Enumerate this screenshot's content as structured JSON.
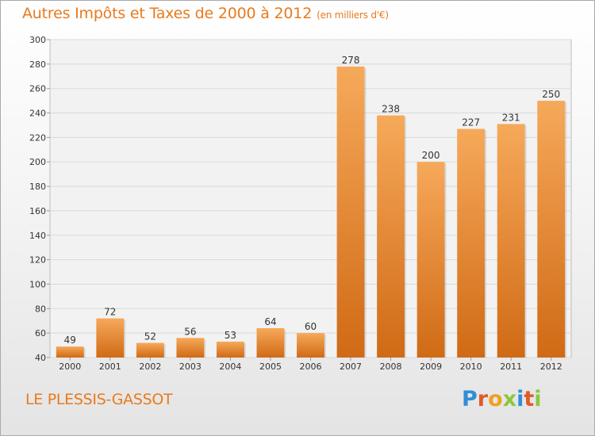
{
  "header": {
    "title": "Autres Impôts et Taxes de 2000 à 2012",
    "unit": "(en milliers d'€)"
  },
  "footer": {
    "commune": "LE PLESSIS-GASSOT",
    "logo": "Proxiti"
  },
  "colors": {
    "title": "#e87a1e",
    "bar_top": "#f6a95a",
    "bar_bottom": "#d06a15",
    "logo_letters": [
      "#2f8fd8",
      "#e05a2a",
      "#f0a020",
      "#8cc63f",
      "#2f8fd8",
      "#e05a2a",
      "#8cc63f"
    ]
  },
  "chart_data": {
    "type": "bar",
    "title": "Autres Impôts et Taxes de 2000 à 2012",
    "subtitle": "(en milliers d'€)",
    "xlabel": "",
    "ylabel": "",
    "ylim": [
      40,
      300
    ],
    "yticks": [
      40,
      60,
      80,
      100,
      120,
      140,
      160,
      180,
      200,
      220,
      240,
      260,
      280,
      300
    ],
    "grid": true,
    "categories": [
      "2000",
      "2001",
      "2002",
      "2003",
      "2004",
      "2005",
      "2006",
      "2007",
      "2008",
      "2009",
      "2010",
      "2011",
      "2012"
    ],
    "values": [
      49,
      72,
      52,
      56,
      53,
      64,
      60,
      278,
      238,
      200,
      227,
      231,
      250
    ]
  }
}
